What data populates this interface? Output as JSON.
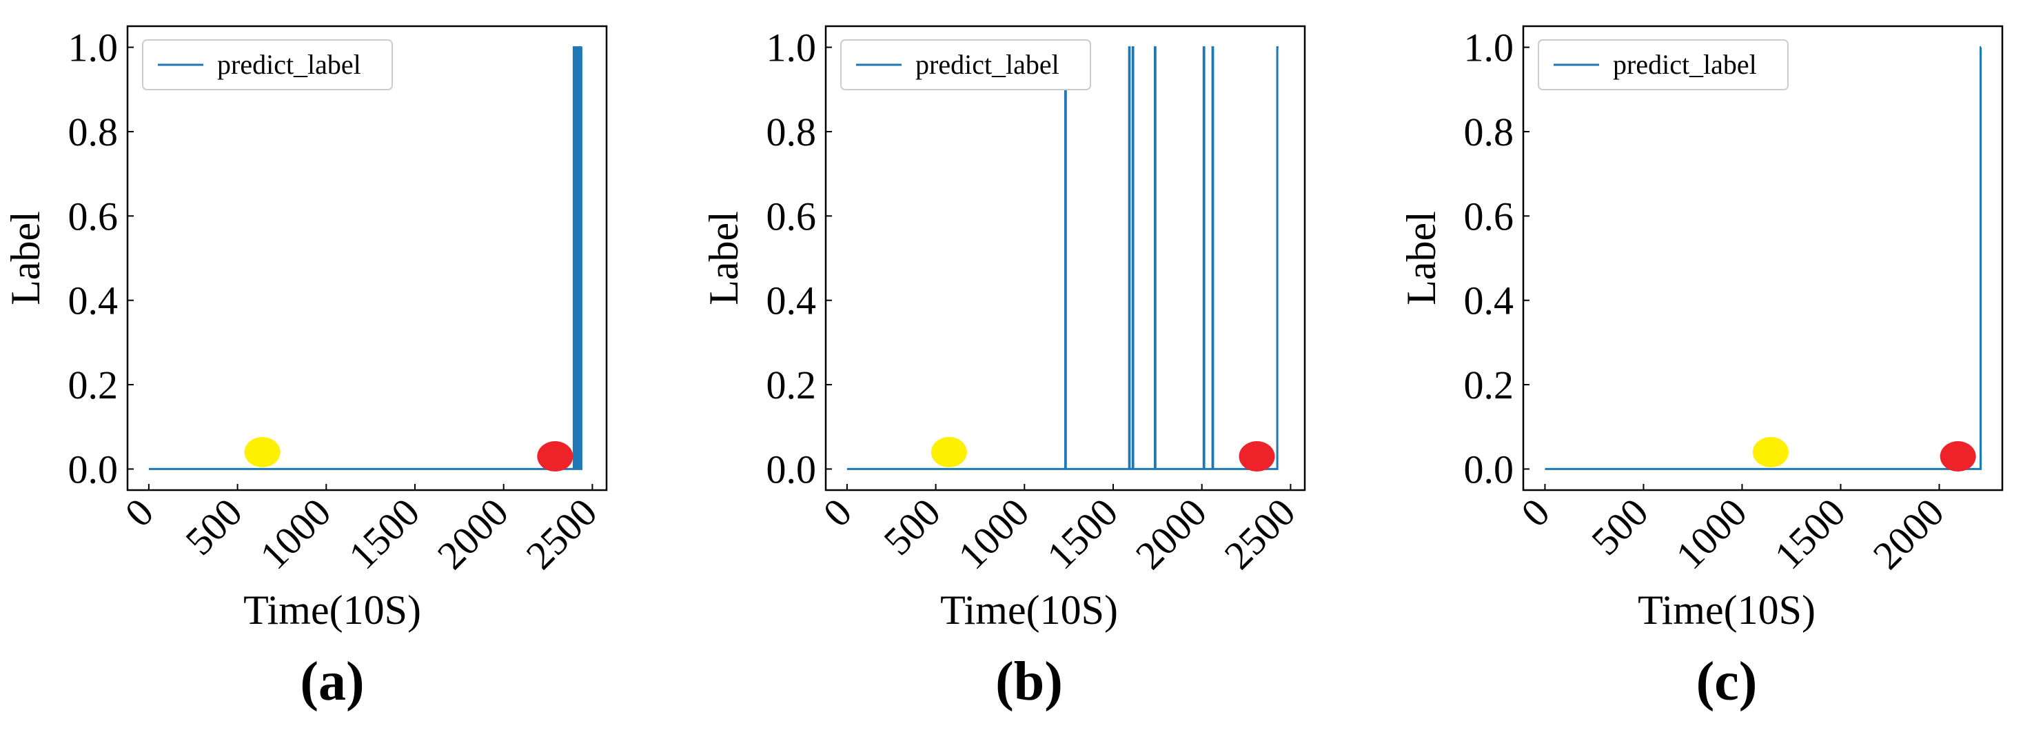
{
  "chart_data": [
    {
      "type": "line",
      "panel_label": "(a)",
      "xlabel": "Time(10S)",
      "ylabel": "Label",
      "xlim": [
        -120,
        2580
      ],
      "ylim": [
        -0.05,
        1.05
      ],
      "xticks": [
        "0",
        "500",
        "1000",
        "1500",
        "2000",
        "2500"
      ],
      "yticks": [
        "0.0",
        "0.2",
        "0.4",
        "0.6",
        "0.8",
        "1.0"
      ],
      "series": [
        {
          "name": "predict_label",
          "color": "#1f77b4",
          "x": [
            0,
            2395,
            2395,
            2400,
            2400,
            2405,
            2405,
            2410,
            2410,
            2414,
            2414,
            2418,
            2418,
            2425,
            2425,
            2430,
            2430,
            2438,
            2438,
            2443
          ],
          "y": [
            0,
            0,
            1,
            1,
            0,
            0,
            1,
            1,
            0,
            0,
            1,
            1,
            0,
            0,
            1,
            1,
            0,
            0,
            1,
            1
          ]
        }
      ],
      "markers": [
        {
          "x": 640,
          "y": 0.04,
          "color": "#ffef00"
        },
        {
          "x": 2290,
          "y": 0.03,
          "color": "#ee2229"
        }
      ],
      "legend": "upper-left",
      "grid": false
    },
    {
      "type": "line",
      "panel_label": "(b)",
      "xlabel": "Time(10S)",
      "ylabel": "Label",
      "xlim": [
        -120,
        2580
      ],
      "ylim": [
        -0.05,
        1.05
      ],
      "xticks": [
        "0",
        "500",
        "1000",
        "1500",
        "2000",
        "2500"
      ],
      "yticks": [
        "0.0",
        "0.2",
        "0.4",
        "0.6",
        "0.8",
        "1.0"
      ],
      "series": [
        {
          "name": "predict_label",
          "color": "#1f77b4",
          "x": [
            0,
            1230,
            1230,
            1233,
            1233,
            1590,
            1590,
            1593,
            1593,
            1610,
            1610,
            1613,
            1613,
            1735,
            1735,
            1738,
            1738,
            2010,
            2010,
            2013,
            2013,
            2060,
            2060,
            2063,
            2063,
            2425,
            2425,
            2432
          ],
          "y": [
            0,
            0,
            1,
            1,
            0,
            0,
            1,
            1,
            0,
            0,
            1,
            1,
            0,
            0,
            1,
            1,
            0,
            0,
            1,
            1,
            0,
            0,
            1,
            1,
            0,
            0,
            1,
            1
          ]
        }
      ],
      "markers": [
        {
          "x": 575,
          "y": 0.04,
          "color": "#ffef00"
        },
        {
          "x": 2310,
          "y": 0.03,
          "color": "#ee2229"
        }
      ],
      "legend": "upper-left",
      "grid": false
    },
    {
      "type": "line",
      "panel_label": "(c)",
      "xlabel": "Time(10S)",
      "ylabel": "Label",
      "xlim": [
        -110,
        2320
      ],
      "ylim": [
        -0.05,
        1.05
      ],
      "xticks": [
        "0",
        "500",
        "1000",
        "1500",
        "2000"
      ],
      "yticks": [
        "0.0",
        "0.2",
        "0.4",
        "0.6",
        "0.8",
        "1.0"
      ],
      "series": [
        {
          "name": "predict_label",
          "color": "#1f77b4",
          "x": [
            0,
            2210,
            2210,
            2212
          ],
          "y": [
            0,
            0,
            1,
            1
          ]
        }
      ],
      "markers": [
        {
          "x": 1145,
          "y": 0.04,
          "color": "#ffef00"
        },
        {
          "x": 2095,
          "y": 0.03,
          "color": "#ee2229"
        }
      ],
      "legend": "upper-left",
      "grid": false
    }
  ]
}
